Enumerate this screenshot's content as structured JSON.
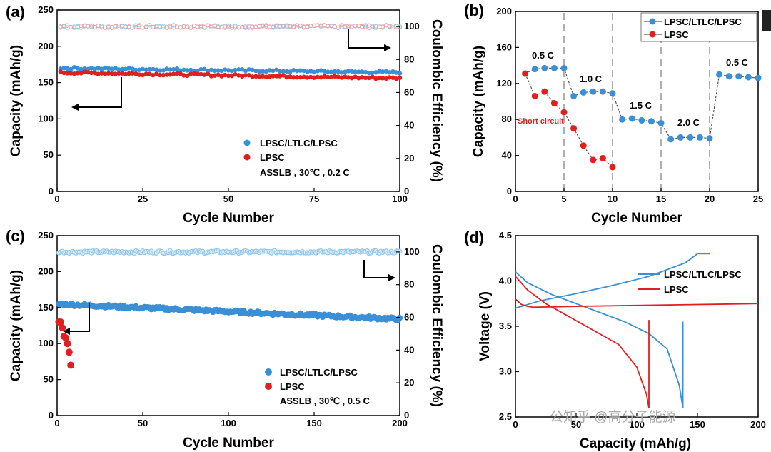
{
  "chart_data": [
    {
      "panel": "(a)",
      "type": "scatter",
      "xlabel": "Cycle Number",
      "ylabel": "Capacity (mAh/g)",
      "y2label": "Coulombic Efficiency (%)",
      "xlim": [
        0,
        100
      ],
      "ylim": [
        0,
        250
      ],
      "y2lim": [
        0,
        110
      ],
      "xticks": [
        "0",
        "25",
        "50",
        "75",
        "100"
      ],
      "yticks": [
        "0",
        "50",
        "100",
        "150",
        "200",
        "250"
      ],
      "y2ticks": [
        "0",
        "20",
        "40",
        "60",
        "80",
        "100"
      ],
      "series": [
        {
          "name": "LPSC/LTLC/LPSC",
          "color": "#3a8fd6",
          "capacity_start": 170,
          "capacity_end": 164,
          "efficiency": 100
        },
        {
          "name": "LPSC",
          "color": "#e02020",
          "capacity_start": 164,
          "capacity_end": 156,
          "efficiency": 100
        }
      ],
      "annotation": "ASSLB , 30℃ , 0.2 C"
    },
    {
      "panel": "(b)",
      "type": "line",
      "xlabel": "Cycle Number",
      "ylabel": "Capacity (mAh/g)",
      "xlim": [
        0,
        25
      ],
      "ylim": [
        0,
        200
      ],
      "xticks": [
        "0",
        "5",
        "10",
        "15",
        "20",
        "25"
      ],
      "yticks": [
        "0",
        "40",
        "80",
        "120",
        "160",
        "200"
      ],
      "series": [
        {
          "name": "LPSC/LTLC/LPSC",
          "color": "#3a8fd6",
          "x": [
            1,
            2,
            3,
            4,
            5,
            6,
            7,
            8,
            9,
            10,
            11,
            12,
            13,
            14,
            15,
            16,
            17,
            18,
            19,
            20,
            21,
            22,
            23,
            24,
            25
          ],
          "y": [
            131,
            136,
            137,
            137,
            137,
            106,
            110,
            111,
            111,
            109,
            80,
            81,
            79,
            78,
            76,
            58,
            60,
            60,
            60,
            59,
            130,
            128,
            128,
            127,
            126
          ]
        },
        {
          "name": "LPSC",
          "color": "#e02020",
          "x": [
            1,
            2,
            3,
            4,
            5,
            6,
            7,
            8,
            9,
            10
          ],
          "y": [
            131,
            106,
            111,
            98,
            88,
            70,
            51,
            35,
            37,
            27
          ]
        }
      ],
      "rate_labels": [
        "0.5 C",
        "1.0 C",
        "1.5 C",
        "2.0 C",
        "0.5 C"
      ],
      "annotation": "Short circuit"
    },
    {
      "panel": "(c)",
      "type": "scatter",
      "xlabel": "Cycle Number",
      "ylabel": "Capacity (mAh/g)",
      "y2label": "Coulombic Efficiency (%)",
      "xlim": [
        0,
        200
      ],
      "ylim": [
        0,
        250
      ],
      "y2lim": [
        0,
        110
      ],
      "xticks": [
        "0",
        "50",
        "100",
        "150",
        "200"
      ],
      "yticks": [
        "0",
        "50",
        "100",
        "150",
        "200",
        "250"
      ],
      "y2ticks": [
        "0",
        "20",
        "40",
        "60",
        "80",
        "100"
      ],
      "series": [
        {
          "name": "LPSC/LTLC/LPSC",
          "color": "#3a8fd6",
          "capacity_start": 155,
          "capacity_end": 134,
          "efficiency": 100
        },
        {
          "name": "LPSC",
          "color": "#e02020",
          "x": [
            1,
            2,
            3,
            4,
            5,
            6,
            7,
            8
          ],
          "y": [
            130,
            130,
            122,
            110,
            108,
            100,
            88,
            70
          ]
        }
      ],
      "annotation": "ASSLB , 30℃ , 0.5 C"
    },
    {
      "panel": "(d)",
      "type": "line",
      "xlabel": "Capacity (mAh/g)",
      "ylabel": "Voltage (V)",
      "xlim": [
        0,
        200
      ],
      "ylim": [
        2.5,
        4.5
      ],
      "xticks": [
        "0",
        "50",
        "100",
        "150",
        "200"
      ],
      "yticks": [
        "2.5",
        "3.0",
        "3.5",
        "4.0",
        "4.5"
      ],
      "series": [
        {
          "name": "LPSC/LTLC/LPSC",
          "color": "#3a8fd6",
          "charge": {
            "x": [
              0,
              20,
              50,
              80,
              110,
              140,
              150,
              160
            ],
            "y": [
              3.7,
              3.78,
              3.86,
              3.95,
              4.05,
              4.2,
              4.3,
              4.3
            ]
          },
          "discharge": {
            "x": [
              0,
              10,
              30,
              60,
              90,
              110,
              125,
              135,
              138,
              138
            ],
            "y": [
              4.1,
              3.98,
              3.85,
              3.7,
              3.55,
              3.42,
              3.25,
              2.85,
              2.6,
              3.55
            ]
          }
        },
        {
          "name": "LPSC",
          "color": "#e02020",
          "charge": {
            "x": [
              0,
              5,
              10,
              15,
              50,
              100,
              150,
              200
            ],
            "y": [
              3.8,
              3.74,
              3.72,
              3.71,
              3.72,
              3.73,
              3.74,
              3.75
            ]
          },
          "discharge": {
            "x": [
              0,
              10,
              25,
              45,
              65,
              85,
              100,
              108,
              110,
              110
            ],
            "y": [
              4.05,
              3.9,
              3.75,
              3.6,
              3.45,
              3.3,
              3.05,
              2.75,
              2.6,
              3.57
            ]
          }
        }
      ]
    }
  ],
  "watermark": "公知乎 @高分子能源"
}
